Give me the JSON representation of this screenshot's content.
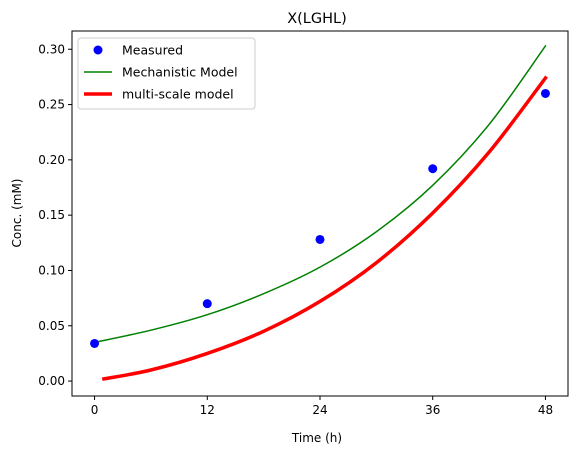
{
  "chart_data": {
    "type": "line",
    "title": "X(LGHL)",
    "xlabel": "Time (h)",
    "ylabel": "Conc. (mM)",
    "xlim": [
      -2.4,
      50.4
    ],
    "ylim": [
      -0.0135,
      0.3165
    ],
    "x_ticks": [
      0,
      12,
      24,
      36,
      48
    ],
    "x_tick_labels": [
      "0",
      "12",
      "24",
      "36",
      "48"
    ],
    "y_ticks": [
      0.0,
      0.05,
      0.1,
      0.15,
      0.2,
      0.25,
      0.3
    ],
    "y_tick_labels": [
      "0.00",
      "0.05",
      "0.10",
      "0.15",
      "0.20",
      "0.25",
      "0.30"
    ],
    "grid": false,
    "legend_position": "top-left",
    "series": [
      {
        "name": "Measured",
        "kind": "scatter",
        "color": "#0000ff",
        "x": [
          0,
          12,
          24,
          36,
          48
        ],
        "y": [
          0.034,
          0.07,
          0.128,
          0.192,
          0.26
        ]
      },
      {
        "name": "Mechanistic Model",
        "kind": "line",
        "color": "#008000",
        "x": [
          0,
          6,
          12,
          18,
          24,
          30,
          36,
          42,
          48
        ],
        "y": [
          0.035,
          0.046,
          0.06,
          0.079,
          0.103,
          0.135,
          0.177,
          0.232,
          0.303
        ]
      },
      {
        "name": "multi-scale model",
        "kind": "line",
        "color": "#ff0000",
        "x": [
          1,
          6,
          12,
          18,
          24,
          30,
          36,
          42,
          48
        ],
        "y": [
          0.002,
          0.01,
          0.025,
          0.045,
          0.072,
          0.107,
          0.152,
          0.207,
          0.274
        ]
      }
    ]
  }
}
